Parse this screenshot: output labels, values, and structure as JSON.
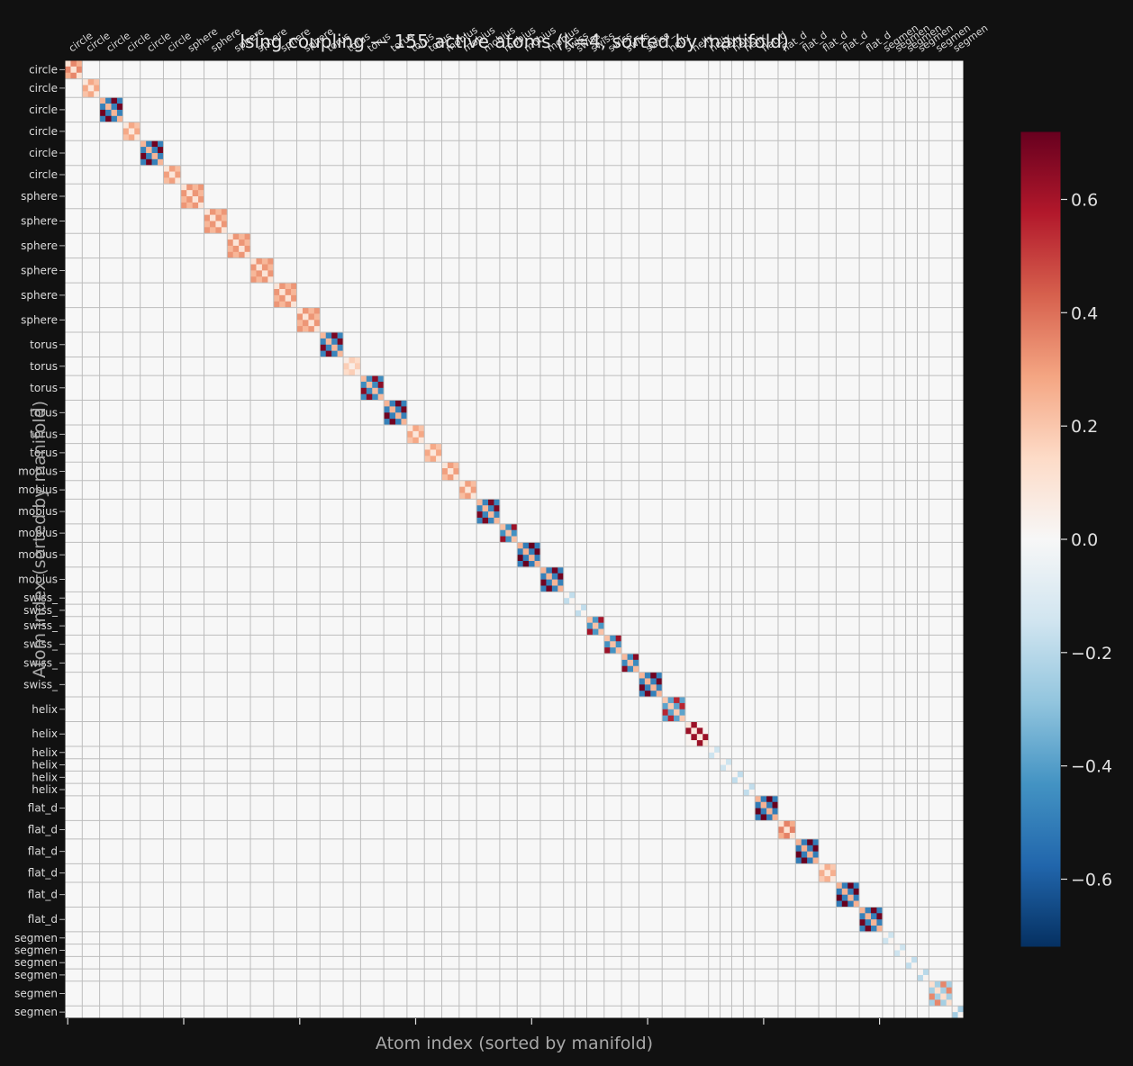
{
  "chart_data": {
    "type": "heatmap",
    "title": "Ising coupling — 155 active atoms (k=4, sorted by manifold)",
    "xlabel": "Atom index (sorted by manifold)",
    "ylabel": "Atom index (sorted by manifold)",
    "n_atoms": 155,
    "value_range": [
      -0.72,
      0.72
    ],
    "colormap": "RdBu_r",
    "colorbar_ticks": [
      -0.6,
      -0.4,
      -0.2,
      0.0,
      0.2,
      0.4,
      0.6
    ],
    "colorbar_tick_labels": [
      "−0.6",
      "−0.4",
      "−0.2",
      "0.0",
      "0.2",
      "0.4",
      "0.6"
    ],
    "x_ticks": [
      0,
      20,
      40,
      60,
      80,
      100,
      120,
      140
    ],
    "groups": [
      {
        "label": "circle",
        "start": 0,
        "size": 3,
        "pattern": "warm",
        "strength": 0.35
      },
      {
        "label": "circle",
        "start": 3,
        "size": 3,
        "pattern": "warm",
        "strength": 0.28
      },
      {
        "label": "circle",
        "start": 6,
        "size": 4,
        "pattern": "checker",
        "strength": 0.7
      },
      {
        "label": "circle",
        "start": 10,
        "size": 3,
        "pattern": "warm",
        "strength": 0.28
      },
      {
        "label": "circle",
        "start": 13,
        "size": 4,
        "pattern": "checker",
        "strength": 0.7
      },
      {
        "label": "circle",
        "start": 17,
        "size": 3,
        "pattern": "warm",
        "strength": 0.3
      },
      {
        "label": "sphere",
        "start": 20,
        "size": 4,
        "pattern": "warm",
        "strength": 0.32
      },
      {
        "label": "sphere",
        "start": 24,
        "size": 4,
        "pattern": "warm",
        "strength": 0.32
      },
      {
        "label": "sphere",
        "start": 28,
        "size": 4,
        "pattern": "warm",
        "strength": 0.32
      },
      {
        "label": "sphere",
        "start": 32,
        "size": 4,
        "pattern": "warm",
        "strength": 0.32
      },
      {
        "label": "sphere",
        "start": 36,
        "size": 4,
        "pattern": "warm",
        "strength": 0.32
      },
      {
        "label": "sphere",
        "start": 40,
        "size": 4,
        "pattern": "warm",
        "strength": 0.32
      },
      {
        "label": "torus",
        "start": 44,
        "size": 4,
        "pattern": "checker",
        "strength": 0.68
      },
      {
        "label": "torus",
        "start": 48,
        "size": 3,
        "pattern": "warm",
        "strength": 0.18
      },
      {
        "label": "torus",
        "start": 51,
        "size": 4,
        "pattern": "checker",
        "strength": 0.65
      },
      {
        "label": "torus",
        "start": 55,
        "size": 4,
        "pattern": "checker",
        "strength": 0.7
      },
      {
        "label": "torus",
        "start": 59,
        "size": 3,
        "pattern": "warm",
        "strength": 0.28
      },
      {
        "label": "torus",
        "start": 62,
        "size": 3,
        "pattern": "warm",
        "strength": 0.28
      },
      {
        "label": "mobius",
        "start": 65,
        "size": 3,
        "pattern": "warm",
        "strength": 0.3
      },
      {
        "label": "mobius",
        "start": 68,
        "size": 3,
        "pattern": "warm",
        "strength": 0.3
      },
      {
        "label": "mobius",
        "start": 71,
        "size": 4,
        "pattern": "checker",
        "strength": 0.68
      },
      {
        "label": "mobius",
        "start": 75,
        "size": 3,
        "pattern": "checker",
        "strength": 0.62
      },
      {
        "label": "mobius",
        "start": 78,
        "size": 4,
        "pattern": "checker",
        "strength": 0.72
      },
      {
        "label": "mobius",
        "start": 82,
        "size": 4,
        "pattern": "checker",
        "strength": 0.7
      },
      {
        "label": "swiss_",
        "start": 86,
        "size": 2,
        "pattern": "cool",
        "strength": 0.18
      },
      {
        "label": "swiss_",
        "start": 88,
        "size": 2,
        "pattern": "cool",
        "strength": 0.18
      },
      {
        "label": "swiss_",
        "start": 90,
        "size": 3,
        "pattern": "checker",
        "strength": 0.6
      },
      {
        "label": "swiss_",
        "start": 93,
        "size": 3,
        "pattern": "checker",
        "strength": 0.62
      },
      {
        "label": "swiss_",
        "start": 96,
        "size": 3,
        "pattern": "checker",
        "strength": 0.66
      },
      {
        "label": "swiss_",
        "start": 99,
        "size": 4,
        "pattern": "checker",
        "strength": 0.7
      },
      {
        "label": "helix",
        "start": 103,
        "size": 4,
        "pattern": "checker",
        "strength": 0.55
      },
      {
        "label": "helix",
        "start": 107,
        "size": 4,
        "pattern": "diag",
        "strength": 0.62
      },
      {
        "label": "helix",
        "start": 111,
        "size": 2,
        "pattern": "cool",
        "strength": 0.15
      },
      {
        "label": "helix",
        "start": 113,
        "size": 2,
        "pattern": "cool",
        "strength": 0.15
      },
      {
        "label": "helix",
        "start": 115,
        "size": 2,
        "pattern": "cool",
        "strength": 0.18
      },
      {
        "label": "helix",
        "start": 117,
        "size": 2,
        "pattern": "cool",
        "strength": 0.18
      },
      {
        "label": "flat_d",
        "start": 119,
        "size": 4,
        "pattern": "checker",
        "strength": 0.72
      },
      {
        "label": "flat_d",
        "start": 123,
        "size": 3,
        "pattern": "warm",
        "strength": 0.36
      },
      {
        "label": "flat_d",
        "start": 126,
        "size": 4,
        "pattern": "checker",
        "strength": 0.72
      },
      {
        "label": "flat_d",
        "start": 130,
        "size": 3,
        "pattern": "warm",
        "strength": 0.26
      },
      {
        "label": "flat_d",
        "start": 133,
        "size": 4,
        "pattern": "checker",
        "strength": 0.72
      },
      {
        "label": "flat_d",
        "start": 137,
        "size": 4,
        "pattern": "checker",
        "strength": 0.7
      },
      {
        "label": "segmen",
        "start": 141,
        "size": 2,
        "pattern": "cool",
        "strength": 0.15
      },
      {
        "label": "segmen",
        "start": 143,
        "size": 2,
        "pattern": "cool",
        "strength": 0.15
      },
      {
        "label": "segmen",
        "start": 145,
        "size": 2,
        "pattern": "cool",
        "strength": 0.18
      },
      {
        "label": "segmen",
        "start": 147,
        "size": 2,
        "pattern": "cool",
        "strength": 0.2
      },
      {
        "label": "segmen",
        "start": 149,
        "size": 4,
        "pattern": "checker",
        "strength": 0.35
      },
      {
        "label": "segmen",
        "start": 153,
        "size": 2,
        "pattern": "cool",
        "strength": 0.25
      }
    ]
  }
}
